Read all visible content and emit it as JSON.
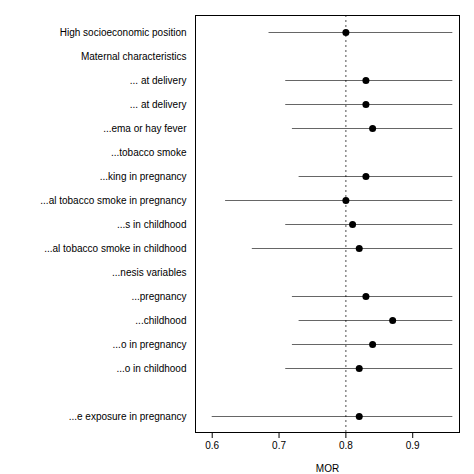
{
  "chart_data": {
    "type": "forest",
    "xlabel": "MOR",
    "xlim": [
      0.575,
      0.97
    ],
    "xticks": [
      0.6,
      0.7,
      0.8,
      0.9
    ],
    "reference_line": 0.8,
    "categories": [
      "High socioeconomic position",
      "Maternal characteristics",
      "... at delivery",
      "... at delivery",
      "...ema or hay fever",
      "...tobacco smoke",
      "...king in pregnancy",
      "...al tobacco smoke in pregnancy",
      "...s in childhood",
      "...al tobacco smoke in childhood",
      "...nesis variables",
      "...pregnancy",
      "...childhood",
      "...o in pregnancy",
      "...o in childhood",
      null,
      "...e exposure in pregnancy"
    ],
    "values": [
      0.8,
      null,
      0.83,
      0.83,
      0.84,
      null,
      0.83,
      0.8,
      0.81,
      0.82,
      null,
      0.83,
      0.87,
      0.84,
      0.82,
      null,
      0.82
    ],
    "lo": [
      0.685,
      null,
      0.71,
      0.71,
      0.72,
      null,
      0.73,
      0.62,
      0.71,
      0.66,
      null,
      0.72,
      0.73,
      0.72,
      0.71,
      null,
      0.6
    ],
    "hi": [
      0.96,
      null,
      0.96,
      0.96,
      0.96,
      null,
      0.96,
      0.96,
      0.96,
      0.96,
      null,
      0.96,
      0.96,
      0.96,
      0.96,
      null,
      0.96
    ]
  }
}
